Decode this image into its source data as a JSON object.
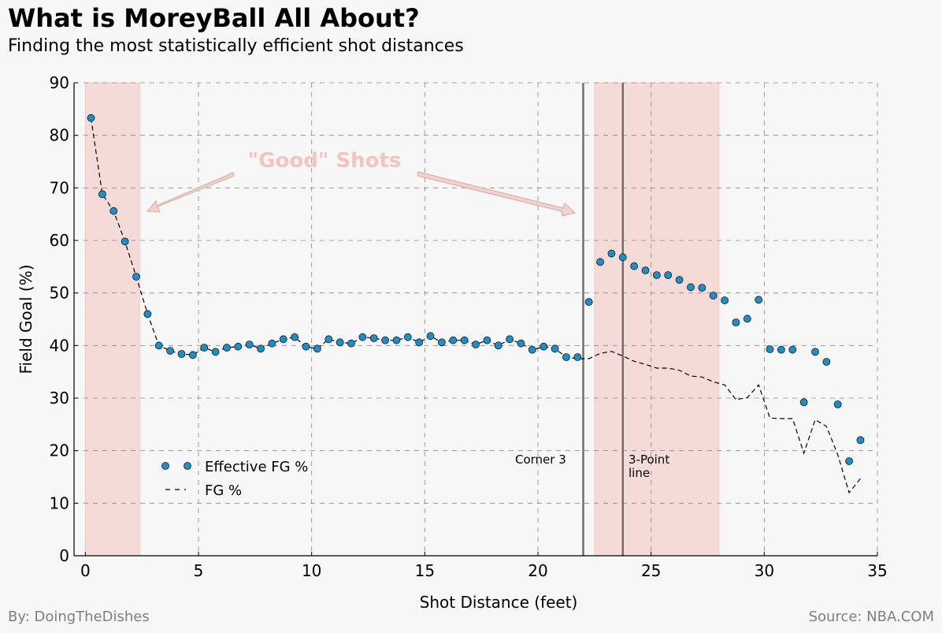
{
  "title": "What is MoreyBall All About?",
  "subtitle": "Finding the most statistically efficient shot distances",
  "footer": {
    "credit": "By: DoingTheDishes",
    "source": "Source: NBA.COM"
  },
  "colors": {
    "background": "#f7f7f7",
    "efg_marker": "#1a8fca",
    "fg_line": "#000000",
    "shade": "#f2b4ae",
    "vline": "#6f6f6f",
    "annotation": "#f4c4bd",
    "footer": "#7f7f7f"
  },
  "chart_data": {
    "type": "scatter",
    "xlabel": "Shot Distance (feet)",
    "ylabel": "Field Goal (%)",
    "xlim": [
      -0.5,
      35
    ],
    "ylim": [
      0,
      90
    ],
    "xticks": [
      0,
      5,
      10,
      15,
      20,
      25,
      30,
      35
    ],
    "yticks": [
      0,
      10,
      20,
      30,
      40,
      50,
      60,
      70,
      80,
      90
    ],
    "grid": true,
    "legend_position": "lower-left",
    "series": [
      {
        "name": "Effective FG %",
        "kind": "scatter",
        "x": [
          0.25,
          0.75,
          1.25,
          1.75,
          2.25,
          2.75,
          3.25,
          3.75,
          4.25,
          4.75,
          5.25,
          5.75,
          6.25,
          6.75,
          7.25,
          7.75,
          8.25,
          8.75,
          9.25,
          9.75,
          10.25,
          10.75,
          11.25,
          11.75,
          12.25,
          12.75,
          13.25,
          13.75,
          14.25,
          14.75,
          15.25,
          15.75,
          16.25,
          16.75,
          17.25,
          17.75,
          18.25,
          18.75,
          19.25,
          19.75,
          20.25,
          20.75,
          21.25,
          21.75,
          22.25,
          22.75,
          23.25,
          23.75,
          24.25,
          24.75,
          25.25,
          25.75,
          26.25,
          26.75,
          27.25,
          27.75,
          28.25,
          28.75,
          29.25,
          29.75,
          30.25,
          30.75,
          31.25,
          31.75,
          32.25,
          32.75,
          33.25,
          33.75,
          34.25
        ],
        "y": [
          83.3,
          68.8,
          65.6,
          59.8,
          53.1,
          46.0,
          40.0,
          39.0,
          38.4,
          38.2,
          39.6,
          38.8,
          39.6,
          39.8,
          40.2,
          39.4,
          40.4,
          41.2,
          41.6,
          39.8,
          39.4,
          41.2,
          40.6,
          40.4,
          41.6,
          41.4,
          41.0,
          41.0,
          41.6,
          40.6,
          41.8,
          40.6,
          41.0,
          41.0,
          40.2,
          41.0,
          40.0,
          41.2,
          40.4,
          39.2,
          39.8,
          39.4,
          37.8,
          37.8,
          48.3,
          55.9,
          57.5,
          56.8,
          55.1,
          54.3,
          53.4,
          53.4,
          52.5,
          51.1,
          51.0,
          49.5,
          48.6,
          44.4,
          45.1,
          48.7,
          39.3,
          39.2,
          39.2,
          29.2,
          38.8,
          36.9,
          28.8,
          18.0,
          22.0
        ]
      },
      {
        "name": "FG %",
        "kind": "line",
        "style": "dashed",
        "x": [
          0.25,
          0.75,
          1.25,
          1.75,
          2.25,
          2.75,
          3.25,
          3.75,
          4.25,
          4.75,
          5.25,
          5.75,
          6.25,
          6.75,
          7.25,
          7.75,
          8.25,
          8.75,
          9.25,
          9.75,
          10.25,
          10.75,
          11.25,
          11.75,
          12.25,
          12.75,
          13.25,
          13.75,
          14.25,
          14.75,
          15.25,
          15.75,
          16.25,
          16.75,
          17.25,
          17.75,
          18.25,
          18.75,
          19.25,
          19.75,
          20.25,
          20.75,
          21.25,
          21.75,
          22.25,
          22.75,
          23.25,
          23.75,
          24.25,
          24.75,
          25.25,
          25.75,
          26.25,
          26.75,
          27.25,
          27.75,
          28.25,
          28.75,
          29.25,
          29.75,
          30.25,
          30.75,
          31.25,
          31.75,
          32.25,
          32.75,
          33.25,
          33.75,
          34.25
        ],
        "y": [
          83.3,
          68.8,
          65.6,
          59.8,
          53.1,
          46.0,
          40.0,
          39.0,
          38.4,
          38.2,
          39.6,
          38.8,
          39.6,
          39.8,
          40.2,
          39.4,
          40.4,
          41.2,
          41.6,
          39.8,
          39.4,
          41.2,
          40.6,
          40.4,
          41.6,
          41.4,
          41.0,
          41.0,
          41.6,
          40.6,
          41.8,
          40.6,
          41.0,
          41.0,
          40.2,
          41.0,
          40.0,
          41.2,
          40.4,
          39.2,
          39.8,
          39.4,
          37.8,
          37.5,
          37.5,
          38.5,
          38.9,
          38.0,
          37.0,
          36.4,
          35.7,
          35.7,
          35.3,
          34.2,
          34.0,
          33.1,
          32.5,
          29.7,
          30.1,
          32.5,
          26.2,
          26.1,
          26.1,
          19.5,
          25.9,
          24.6,
          19.2,
          12.0,
          14.7
        ]
      }
    ],
    "shaded_regions": [
      [
        0,
        2.4
      ],
      [
        22.5,
        28
      ]
    ],
    "vlines": [
      22,
      23.75
    ],
    "annotations": {
      "good_shots": "\"Good\" Shots",
      "corner3": "Corner 3",
      "three_point_line_1": "3-Point",
      "three_point_line_2": "line"
    }
  }
}
